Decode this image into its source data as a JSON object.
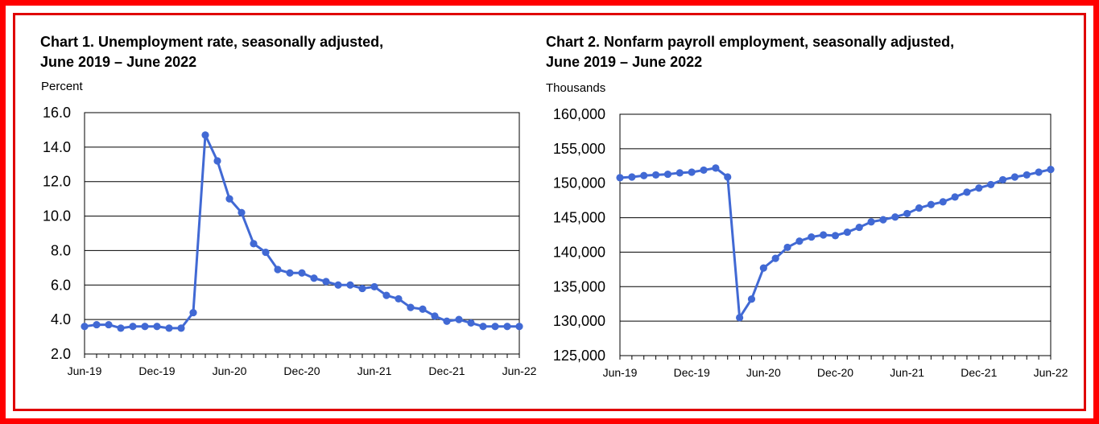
{
  "chart_data": [
    {
      "type": "line",
      "title_line1": "Chart 1. Unemployment rate, seasonally adjusted,",
      "title_line2": "June 2019 – June 2022",
      "ylabel": "Percent",
      "xlabel": "",
      "ylim": [
        2.0,
        16.0
      ],
      "yticks": [
        "16.0",
        "14.0",
        "12.0",
        "10.0",
        "8.0",
        "6.0",
        "4.0",
        "2.0"
      ],
      "ytick_values": [
        16,
        14,
        12,
        10,
        8,
        6,
        4,
        2
      ],
      "xtick_labels": [
        "Jun-19",
        "Dec-19",
        "Jun-20",
        "Dec-20",
        "Jun-21",
        "Dec-21",
        "Jun-22"
      ],
      "xtick_months": [
        0,
        6,
        12,
        18,
        24,
        30,
        36
      ],
      "x_range_months": [
        0,
        36
      ],
      "grid": true,
      "line_color": "#4169d4",
      "x": [
        "Jun-19",
        "Jul-19",
        "Aug-19",
        "Sep-19",
        "Oct-19",
        "Nov-19",
        "Dec-19",
        "Jan-20",
        "Feb-20",
        "Mar-20",
        "Apr-20",
        "May-20",
        "Jun-20",
        "Jul-20",
        "Aug-20",
        "Sep-20",
        "Oct-20",
        "Nov-20",
        "Dec-20",
        "Jan-21",
        "Feb-21",
        "Mar-21",
        "Apr-21",
        "May-21",
        "Jun-21",
        "Jul-21",
        "Aug-21",
        "Sep-21",
        "Oct-21",
        "Nov-21",
        "Dec-21",
        "Jan-22",
        "Feb-22",
        "Mar-22",
        "Apr-22",
        "May-22",
        "Jun-22"
      ],
      "values": [
        3.6,
        3.7,
        3.7,
        3.5,
        3.6,
        3.6,
        3.6,
        3.5,
        3.5,
        4.4,
        14.7,
        13.2,
        11.0,
        10.2,
        8.4,
        7.9,
        6.9,
        6.7,
        6.7,
        6.4,
        6.2,
        6.0,
        6.0,
        5.8,
        5.9,
        5.4,
        5.2,
        4.7,
        4.6,
        4.2,
        3.9,
        4.0,
        3.8,
        3.6,
        3.6,
        3.6,
        3.6
      ]
    },
    {
      "type": "line",
      "title_line1": "Chart 2. Nonfarm payroll employment, seasonally adjusted,",
      "title_line2": "June 2019 – June 2022",
      "ylabel": "Thousands",
      "xlabel": "",
      "ylim": [
        125000,
        160000
      ],
      "yticks": [
        "160,000",
        "155,000",
        "150,000",
        "145,000",
        "140,000",
        "135,000",
        "130,000",
        "125,000"
      ],
      "ytick_values": [
        160000,
        155000,
        150000,
        145000,
        140000,
        135000,
        130000,
        125000
      ],
      "xtick_labels": [
        "Jun-19",
        "Dec-19",
        "Jun-20",
        "Dec-20",
        "Jun-21",
        "Dec-21",
        "Jun-22"
      ],
      "xtick_months": [
        0,
        6,
        12,
        18,
        24,
        30,
        36
      ],
      "x_range_months": [
        0,
        36
      ],
      "grid": true,
      "line_color": "#4169d4",
      "x": [
        "Jun-19",
        "Jul-19",
        "Aug-19",
        "Sep-19",
        "Oct-19",
        "Nov-19",
        "Dec-19",
        "Jan-20",
        "Feb-20",
        "Mar-20",
        "Apr-20",
        "May-20",
        "Jun-20",
        "Jul-20",
        "Aug-20",
        "Sep-20",
        "Oct-20",
        "Nov-20",
        "Dec-20",
        "Jan-21",
        "Feb-21",
        "Mar-21",
        "Apr-21",
        "May-21",
        "Jun-21",
        "Jul-21",
        "Aug-21",
        "Sep-21",
        "Oct-21",
        "Nov-21",
        "Dec-21",
        "Jan-22",
        "Feb-22",
        "Mar-22",
        "Apr-22",
        "May-22",
        "Jun-22"
      ],
      "values": [
        150800,
        150900,
        151100,
        151200,
        151300,
        151500,
        151600,
        151900,
        152200,
        150900,
        130500,
        133200,
        137700,
        139100,
        140700,
        141600,
        142200,
        142500,
        142400,
        142900,
        143600,
        144400,
        144700,
        145100,
        145600,
        146400,
        146900,
        147300,
        148000,
        148700,
        149300,
        149800,
        150500,
        150900,
        151200,
        151600,
        152000
      ]
    }
  ]
}
